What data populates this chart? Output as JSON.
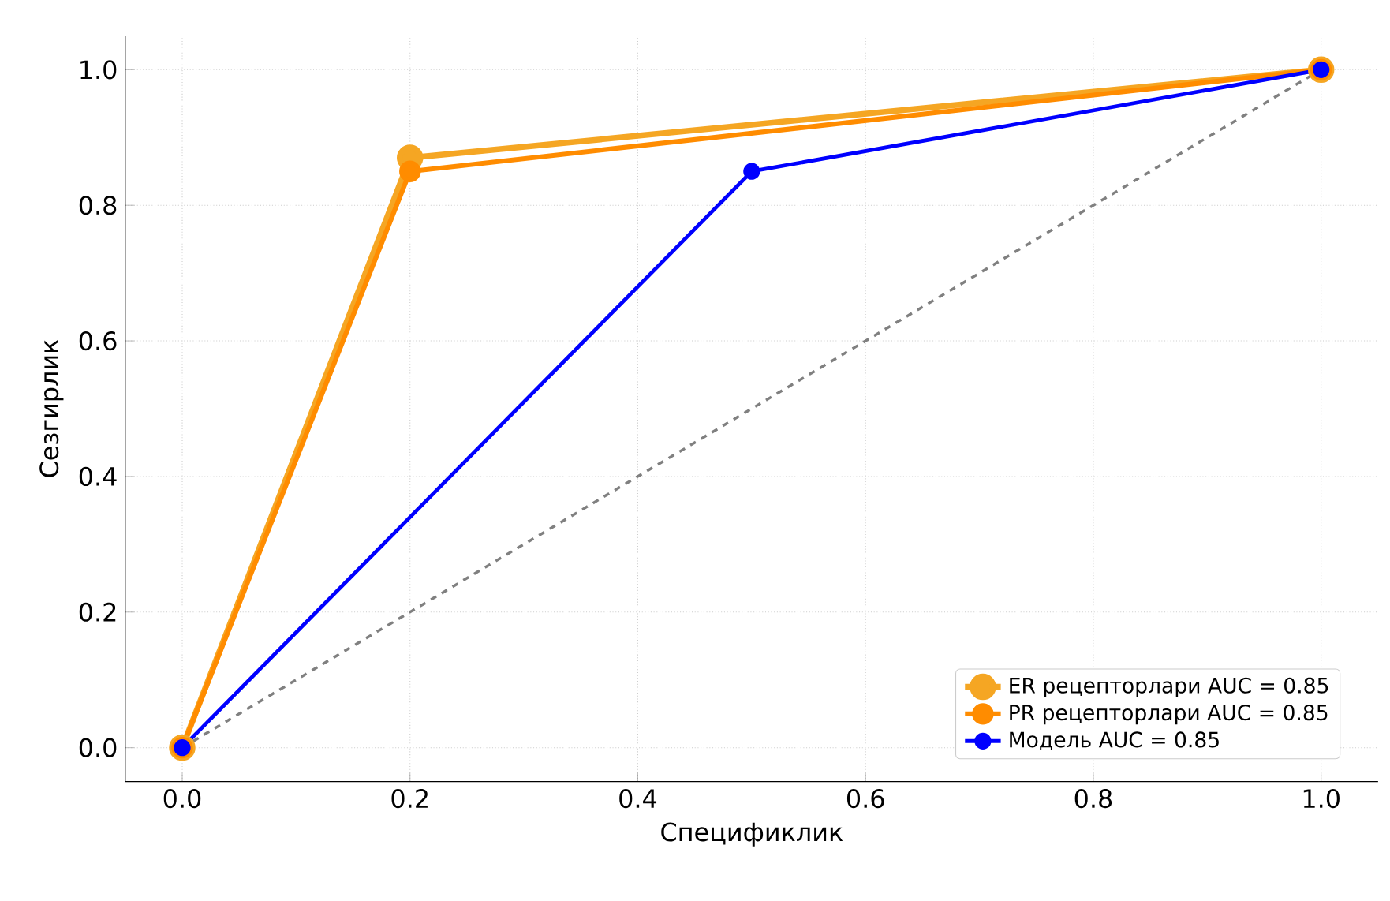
{
  "chart_data": {
    "type": "line",
    "xlabel": "Спецификлик",
    "ylabel": "Сезгирлик",
    "xlim": [
      -0.05,
      1.05
    ],
    "ylim": [
      -0.05,
      1.05
    ],
    "xticks": [
      {
        "value": 0,
        "label": "0.0"
      },
      0.2,
      0.4,
      0.6,
      0.8,
      {
        "value": 1,
        "label": "1.0"
      }
    ],
    "yticks": [
      {
        "value": 0,
        "label": "0.0"
      },
      0.2,
      0.4,
      0.6,
      0.8,
      {
        "value": 1,
        "label": "1.0"
      }
    ],
    "grid": true,
    "legend": "bottom right",
    "marker": "circle",
    "line_style": "solid",
    "series": [
      {
        "name": "ER рецепторлари AUC = 0.85",
        "color": "#f5a623",
        "x": [
          0,
          0.2,
          1
        ],
        "values": [
          0,
          0.87,
          1
        ]
      },
      {
        "name": "PR рецепторлари AUC = 0.85",
        "color": "#ff8c00",
        "x": [
          0,
          0.2,
          1
        ],
        "values": [
          0,
          0.85,
          1
        ]
      },
      {
        "name": "Модель AUC = 0.85",
        "color": "#0000ff",
        "x": [
          0,
          0.5,
          1
        ],
        "values": [
          0,
          0.85,
          1
        ]
      },
      {
        "color": "#808080",
        "x": [
          0,
          1
        ],
        "values": [
          0,
          1
        ],
        "marker": "none",
        "line_style": "dashed"
      }
    ]
  }
}
